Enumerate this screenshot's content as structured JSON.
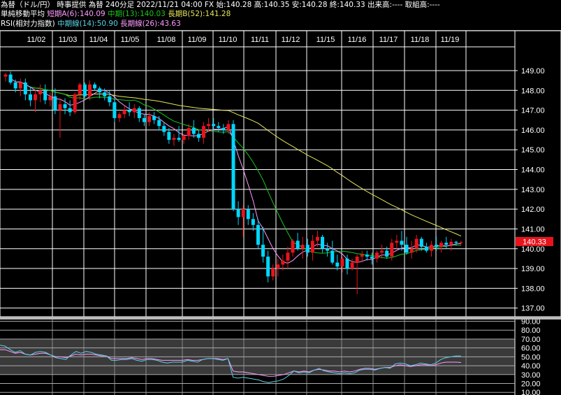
{
  "header": {
    "quote_prefix": "為替（ドル/円） 時事提供 為替 240分足 2022/11/21 04:00 FX",
    "open_label": "始:",
    "open": "140.28",
    "high_label": "高:",
    "high": "140.35",
    "low_label": "安:",
    "low": "140.28",
    "close_label": "終:",
    "close": "140.33",
    "volume_label": "出来高:",
    "volume": "----",
    "turnover_label": "取組高:",
    "turnover": "----",
    "ma_title": "単純移動平均",
    "ma_short_label": "短期A(6):",
    "ma_short_value": "140.09",
    "ma_mid_label": "中期(13):",
    "ma_mid_value": "140.03",
    "ma_long_label": "長期B(52):",
    "ma_long_value": "141.28",
    "rsi_title": "RSI(相対力指数)",
    "rsi_mid_label": "中期線(14):",
    "rsi_mid_value": "50.90",
    "rsi_long_label": "長期線(26):",
    "rsi_long_value": "43.63"
  },
  "colors": {
    "up": "#e8141c",
    "down": "#00d8ff",
    "ma_short": "#ff9cff",
    "ma_mid": "#19c819",
    "ma_long": "#e6e65a",
    "rsi_mid": "#5ad2e6",
    "rsi_long": "#ff9cff",
    "grid": "#ffffff"
  },
  "chart_data": [
    {
      "type": "candlestick",
      "categories": [
        "11/02",
        "11/03",
        "11/04",
        "11/05",
        "11/08",
        "11/09",
        "11/10",
        "11/11",
        "11/12",
        "11/15",
        "11/16",
        "11/17",
        "11/18",
        "11/19"
      ],
      "y_ticks": [
        "149.00",
        "148.00",
        "147.00",
        "146.00",
        "145.00",
        "144.00",
        "143.00",
        "142.00",
        "141.00",
        "140.00",
        "139.00",
        "138.00",
        "137.00"
      ],
      "ylim": [
        136.6,
        150.2
      ],
      "current_price": "140.33",
      "ohlc": [
        [
          148.7,
          148.9,
          148.45,
          148.8
        ],
        [
          148.8,
          148.95,
          148.3,
          148.4
        ],
        [
          148.4,
          148.55,
          147.9,
          148.1
        ],
        [
          148.1,
          148.6,
          147.7,
          148.4
        ],
        [
          148.4,
          148.6,
          147.5,
          147.8
        ],
        [
          147.8,
          148.2,
          147.2,
          147.5
        ],
        [
          147.5,
          148.0,
          146.9,
          147.8
        ],
        [
          147.8,
          148.3,
          147.4,
          148.0
        ],
        [
          148.0,
          148.3,
          147.3,
          147.5
        ],
        [
          147.5,
          147.9,
          147.2,
          147.7
        ],
        [
          147.7,
          148.1,
          146.8,
          147.0
        ],
        [
          147.0,
          147.6,
          145.6,
          147.3
        ],
        [
          147.3,
          147.6,
          146.8,
          147.1
        ],
        [
          147.1,
          147.5,
          146.7,
          146.9
        ],
        [
          146.9,
          147.9,
          146.8,
          147.8
        ],
        [
          147.8,
          148.4,
          147.5,
          148.3
        ],
        [
          148.3,
          148.4,
          147.6,
          147.7
        ],
        [
          147.7,
          148.5,
          147.5,
          148.3
        ],
        [
          148.3,
          148.4,
          148.0,
          148.1
        ],
        [
          148.1,
          148.2,
          147.6,
          147.9
        ],
        [
          147.9,
          148.1,
          147.5,
          147.7
        ],
        [
          147.7,
          148.0,
          147.2,
          147.4
        ],
        [
          147.4,
          147.6,
          146.4,
          146.6
        ],
        [
          146.6,
          146.9,
          146.4,
          146.8
        ],
        [
          146.8,
          147.2,
          146.6,
          147.0
        ],
        [
          147.0,
          147.4,
          146.7,
          146.9
        ],
        [
          146.9,
          147.3,
          146.6,
          147.1
        ],
        [
          147.1,
          147.2,
          146.4,
          146.6
        ],
        [
          146.6,
          146.8,
          146.2,
          146.4
        ],
        [
          146.4,
          146.9,
          146.2,
          146.7
        ],
        [
          146.7,
          146.9,
          146.3,
          146.5
        ],
        [
          146.5,
          146.7,
          146.0,
          146.2
        ],
        [
          146.2,
          146.4,
          145.7,
          145.9
        ],
        [
          145.9,
          146.1,
          145.3,
          145.5
        ],
        [
          145.5,
          145.8,
          145.2,
          145.6
        ],
        [
          145.6,
          146.2,
          145.4,
          145.5
        ],
        [
          145.5,
          145.8,
          145.3,
          145.7
        ],
        [
          145.7,
          146.3,
          145.5,
          146.1
        ],
        [
          146.1,
          146.5,
          145.6,
          145.8
        ],
        [
          145.8,
          146.0,
          145.4,
          145.6
        ],
        [
          145.6,
          146.4,
          145.3,
          146.2
        ],
        [
          146.2,
          146.6,
          145.9,
          146.3
        ],
        [
          146.3,
          146.6,
          146.0,
          146.2
        ],
        [
          146.2,
          146.4,
          145.9,
          146.1
        ],
        [
          146.1,
          146.3,
          145.8,
          146.0
        ],
        [
          146.0,
          146.5,
          145.8,
          146.3
        ],
        [
          146.3,
          146.5,
          141.9,
          142.0
        ],
        [
          142.0,
          142.4,
          141.2,
          141.6
        ],
        [
          141.6,
          142.2,
          140.6,
          142.0
        ],
        [
          142.0,
          142.2,
          141.2,
          141.5
        ],
        [
          141.5,
          141.8,
          140.9,
          141.2
        ],
        [
          141.2,
          141.5,
          140.0,
          140.2
        ],
        [
          140.2,
          141.1,
          139.3,
          139.6
        ],
        [
          139.6,
          139.9,
          138.3,
          138.6
        ],
        [
          138.6,
          139.2,
          138.4,
          139.0
        ],
        [
          139.0,
          139.5,
          138.6,
          139.2
        ],
        [
          139.2,
          139.7,
          138.9,
          139.4
        ],
        [
          139.4,
          140.1,
          139.0,
          139.8
        ],
        [
          139.8,
          140.5,
          139.6,
          140.4
        ],
        [
          140.4,
          140.8,
          139.9,
          140.0
        ],
        [
          140.0,
          140.6,
          139.5,
          140.2
        ],
        [
          140.2,
          140.5,
          139.6,
          139.8
        ],
        [
          139.8,
          140.7,
          139.4,
          140.4
        ],
        [
          140.4,
          140.9,
          140.1,
          140.6
        ],
        [
          140.6,
          140.7,
          139.8,
          140.0
        ],
        [
          140.0,
          140.3,
          139.6,
          139.9
        ],
        [
          139.9,
          140.4,
          139.2,
          139.3
        ],
        [
          139.3,
          139.7,
          138.9,
          139.1
        ],
        [
          139.1,
          139.6,
          138.8,
          139.5
        ],
        [
          139.5,
          139.7,
          138.7,
          139.0
        ],
        [
          139.0,
          139.5,
          138.9,
          139.3
        ],
        [
          139.3,
          139.7,
          137.7,
          139.6
        ],
        [
          139.6,
          139.9,
          139.3,
          139.7
        ],
        [
          139.7,
          139.9,
          139.4,
          139.6
        ],
        [
          139.6,
          139.8,
          139.2,
          139.5
        ],
        [
          139.5,
          139.9,
          139.3,
          139.8
        ],
        [
          139.8,
          140.2,
          139.5,
          139.9
        ],
        [
          139.9,
          140.1,
          139.5,
          139.6
        ],
        [
          139.6,
          140.5,
          139.4,
          140.3
        ],
        [
          140.3,
          140.7,
          140.0,
          140.4
        ],
        [
          140.4,
          140.9,
          139.9,
          140.2
        ],
        [
          140.2,
          140.6,
          139.7,
          139.8
        ],
        [
          139.8,
          140.4,
          139.5,
          140.0
        ],
        [
          140.0,
          140.7,
          139.8,
          140.5
        ],
        [
          140.5,
          140.6,
          139.9,
          140.1
        ],
        [
          140.1,
          140.3,
          139.8,
          139.9
        ],
        [
          139.9,
          140.4,
          139.6,
          140.2
        ],
        [
          140.2,
          140.6,
          139.9,
          140.1
        ],
        [
          140.1,
          140.4,
          139.8,
          140.3
        ],
        [
          140.3,
          140.6,
          140.0,
          140.2
        ],
        [
          140.2,
          140.5,
          139.9,
          140.35
        ],
        [
          140.35,
          140.4,
          140.15,
          140.3
        ],
        [
          140.3,
          140.4,
          140.2,
          140.33
        ]
      ]
    },
    {
      "type": "line",
      "y_ticks": [
        "90.00",
        "80.00",
        "70.00",
        "60.00",
        "50.00",
        "40.00",
        "30.00",
        "20.00",
        "10.00"
      ],
      "ylim": [
        7,
        92
      ],
      "series": [
        {
          "values": [
            63,
            62,
            58,
            55,
            57,
            53,
            52,
            55,
            56,
            55,
            52,
            49,
            48,
            47,
            52,
            56,
            54,
            56,
            55,
            53,
            52,
            51,
            46,
            46,
            47,
            47,
            48,
            46,
            45,
            47,
            47,
            46,
            44,
            43,
            44,
            44,
            44,
            46,
            45,
            44,
            47,
            48,
            48,
            47,
            46,
            48,
            27,
            26,
            27,
            26,
            25,
            24,
            22,
            21,
            22,
            23,
            25,
            29,
            34,
            32,
            33,
            32,
            35,
            37,
            34,
            33,
            32,
            31,
            32,
            31,
            32,
            35,
            36,
            36,
            35,
            37,
            38,
            37,
            42,
            43,
            42,
            40,
            41,
            43,
            42,
            41,
            43,
            47,
            49,
            50,
            51,
            50.9
          ]
        },
        {
          "values": [
            58,
            58,
            56,
            54,
            55,
            53,
            52,
            53,
            54,
            54,
            52,
            50,
            50,
            49,
            51,
            53,
            52,
            53,
            53,
            52,
            51,
            51,
            48,
            48,
            48,
            48,
            49,
            48,
            47,
            48,
            48,
            47,
            46,
            46,
            46,
            46,
            46,
            47,
            46,
            46,
            47,
            48,
            48,
            48,
            47,
            48,
            34,
            33,
            33,
            32,
            31,
            30,
            29,
            28,
            28,
            29,
            30,
            32,
            34,
            33,
            34,
            33,
            35,
            36,
            35,
            34,
            34,
            33,
            34,
            33,
            34,
            36,
            37,
            37,
            36,
            37,
            38,
            38,
            40,
            41,
            40,
            39,
            40,
            41,
            41,
            40,
            41,
            43,
            44,
            44,
            44,
            43.63
          ]
        }
      ]
    }
  ]
}
